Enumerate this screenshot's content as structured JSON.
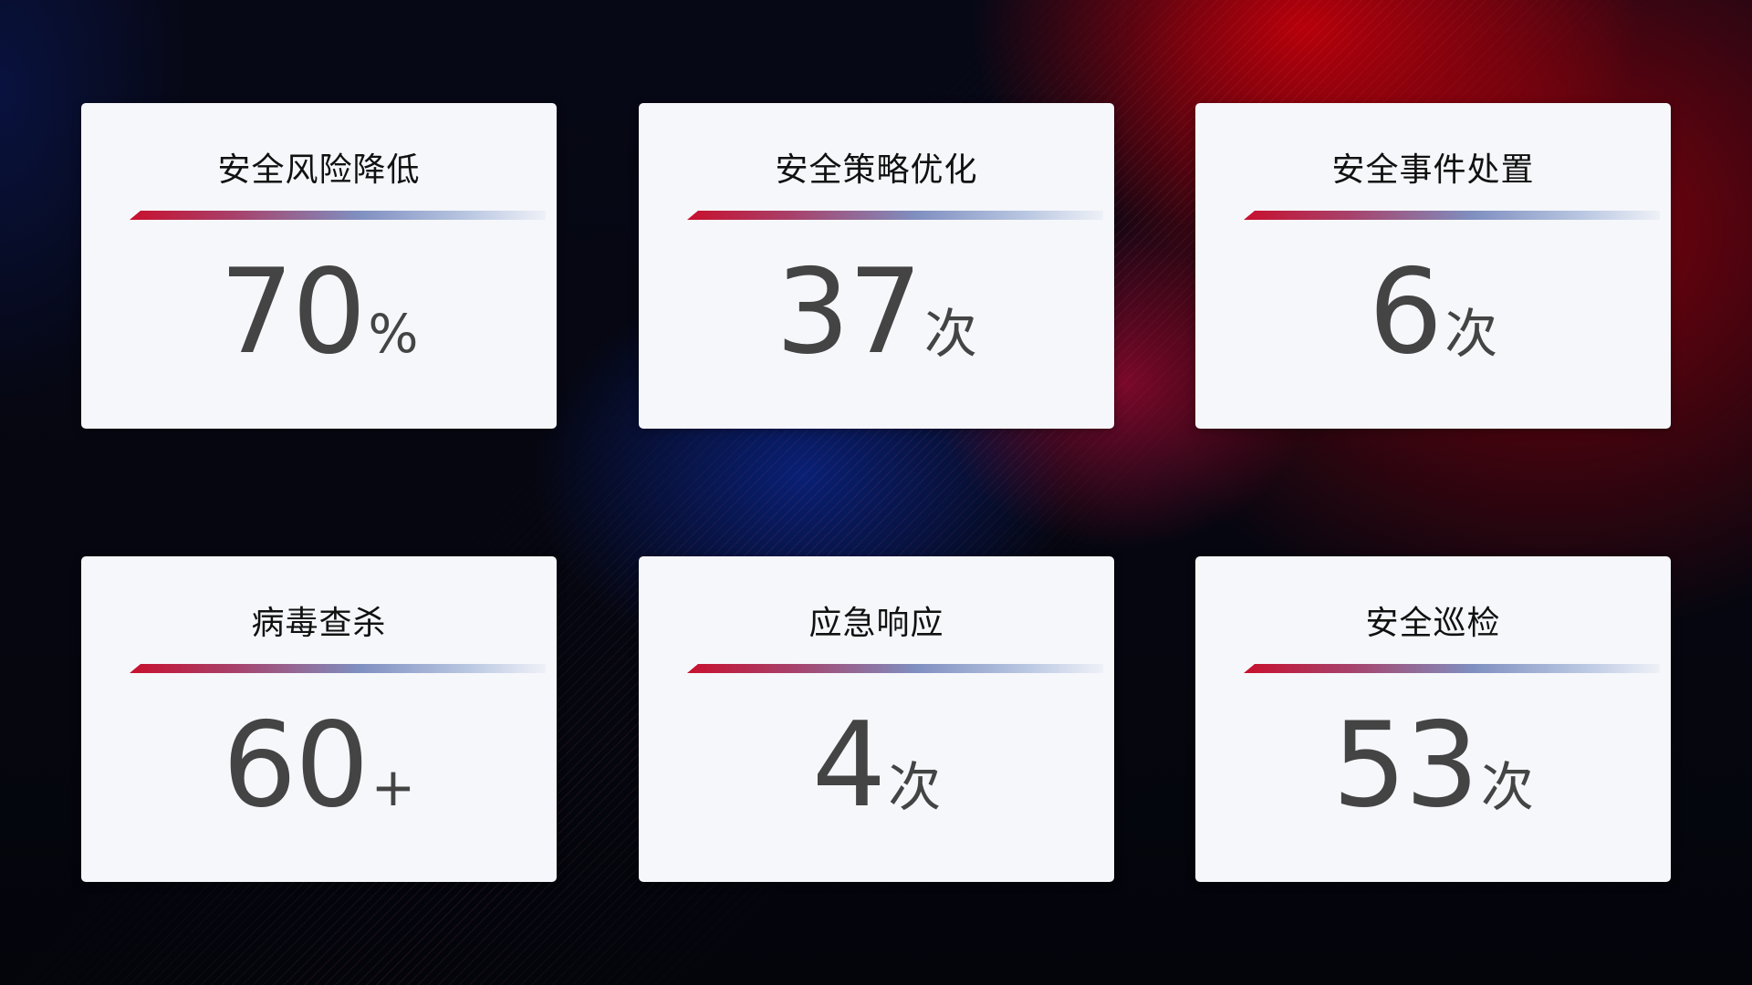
{
  "cards": [
    {
      "title": "安全风险降低",
      "value": "70",
      "unit": "%"
    },
    {
      "title": "安全策略优化",
      "value": "37",
      "unit": "次"
    },
    {
      "title": "安全事件处置",
      "value": "6",
      "unit": "次"
    },
    {
      "title": "病毒查杀",
      "value": "60",
      "unit": "+"
    },
    {
      "title": "应急响应",
      "value": "4",
      "unit": "次"
    },
    {
      "title": "安全巡检",
      "value": "53",
      "unit": "次"
    }
  ],
  "colors": {
    "accent_red": "#c8102e",
    "accent_blue": "#7f8fc0",
    "card_bg": "#f6f7fb",
    "value_text": "#444444"
  }
}
